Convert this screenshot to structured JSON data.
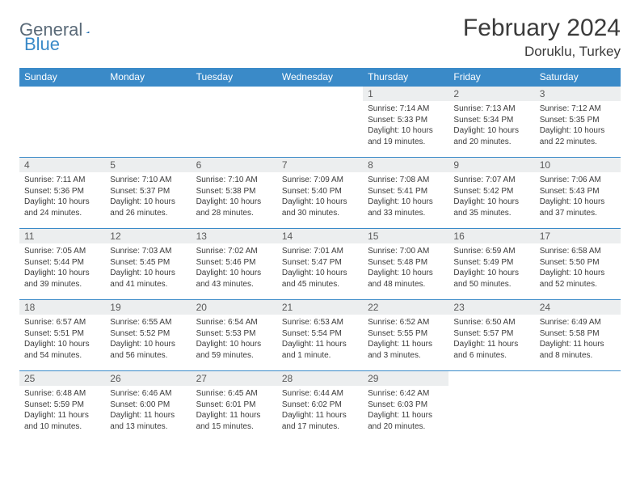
{
  "logo": {
    "part1": "General",
    "part2": "Blue"
  },
  "header": {
    "title": "February 2024",
    "location": "Doruklu, Turkey"
  },
  "colors": {
    "header_bg": "#3a8ac8",
    "header_fg": "#ffffff",
    "daynum_bg": "#eceeef",
    "text": "#3b3b3b",
    "rule": "#3a8ac8"
  },
  "weekdays": [
    "Sunday",
    "Monday",
    "Tuesday",
    "Wednesday",
    "Thursday",
    "Friday",
    "Saturday"
  ],
  "weeks": [
    [
      {
        "blank": true
      },
      {
        "blank": true
      },
      {
        "blank": true
      },
      {
        "blank": true
      },
      {
        "n": "1",
        "l1": "Sunrise: 7:14 AM",
        "l2": "Sunset: 5:33 PM",
        "l3": "Daylight: 10 hours",
        "l4": "and 19 minutes."
      },
      {
        "n": "2",
        "l1": "Sunrise: 7:13 AM",
        "l2": "Sunset: 5:34 PM",
        "l3": "Daylight: 10 hours",
        "l4": "and 20 minutes."
      },
      {
        "n": "3",
        "l1": "Sunrise: 7:12 AM",
        "l2": "Sunset: 5:35 PM",
        "l3": "Daylight: 10 hours",
        "l4": "and 22 minutes."
      }
    ],
    [
      {
        "n": "4",
        "l1": "Sunrise: 7:11 AM",
        "l2": "Sunset: 5:36 PM",
        "l3": "Daylight: 10 hours",
        "l4": "and 24 minutes."
      },
      {
        "n": "5",
        "l1": "Sunrise: 7:10 AM",
        "l2": "Sunset: 5:37 PM",
        "l3": "Daylight: 10 hours",
        "l4": "and 26 minutes."
      },
      {
        "n": "6",
        "l1": "Sunrise: 7:10 AM",
        "l2": "Sunset: 5:38 PM",
        "l3": "Daylight: 10 hours",
        "l4": "and 28 minutes."
      },
      {
        "n": "7",
        "l1": "Sunrise: 7:09 AM",
        "l2": "Sunset: 5:40 PM",
        "l3": "Daylight: 10 hours",
        "l4": "and 30 minutes."
      },
      {
        "n": "8",
        "l1": "Sunrise: 7:08 AM",
        "l2": "Sunset: 5:41 PM",
        "l3": "Daylight: 10 hours",
        "l4": "and 33 minutes."
      },
      {
        "n": "9",
        "l1": "Sunrise: 7:07 AM",
        "l2": "Sunset: 5:42 PM",
        "l3": "Daylight: 10 hours",
        "l4": "and 35 minutes."
      },
      {
        "n": "10",
        "l1": "Sunrise: 7:06 AM",
        "l2": "Sunset: 5:43 PM",
        "l3": "Daylight: 10 hours",
        "l4": "and 37 minutes."
      }
    ],
    [
      {
        "n": "11",
        "l1": "Sunrise: 7:05 AM",
        "l2": "Sunset: 5:44 PM",
        "l3": "Daylight: 10 hours",
        "l4": "and 39 minutes."
      },
      {
        "n": "12",
        "l1": "Sunrise: 7:03 AM",
        "l2": "Sunset: 5:45 PM",
        "l3": "Daylight: 10 hours",
        "l4": "and 41 minutes."
      },
      {
        "n": "13",
        "l1": "Sunrise: 7:02 AM",
        "l2": "Sunset: 5:46 PM",
        "l3": "Daylight: 10 hours",
        "l4": "and 43 minutes."
      },
      {
        "n": "14",
        "l1": "Sunrise: 7:01 AM",
        "l2": "Sunset: 5:47 PM",
        "l3": "Daylight: 10 hours",
        "l4": "and 45 minutes."
      },
      {
        "n": "15",
        "l1": "Sunrise: 7:00 AM",
        "l2": "Sunset: 5:48 PM",
        "l3": "Daylight: 10 hours",
        "l4": "and 48 minutes."
      },
      {
        "n": "16",
        "l1": "Sunrise: 6:59 AM",
        "l2": "Sunset: 5:49 PM",
        "l3": "Daylight: 10 hours",
        "l4": "and 50 minutes."
      },
      {
        "n": "17",
        "l1": "Sunrise: 6:58 AM",
        "l2": "Sunset: 5:50 PM",
        "l3": "Daylight: 10 hours",
        "l4": "and 52 minutes."
      }
    ],
    [
      {
        "n": "18",
        "l1": "Sunrise: 6:57 AM",
        "l2": "Sunset: 5:51 PM",
        "l3": "Daylight: 10 hours",
        "l4": "and 54 minutes."
      },
      {
        "n": "19",
        "l1": "Sunrise: 6:55 AM",
        "l2": "Sunset: 5:52 PM",
        "l3": "Daylight: 10 hours",
        "l4": "and 56 minutes."
      },
      {
        "n": "20",
        "l1": "Sunrise: 6:54 AM",
        "l2": "Sunset: 5:53 PM",
        "l3": "Daylight: 10 hours",
        "l4": "and 59 minutes."
      },
      {
        "n": "21",
        "l1": "Sunrise: 6:53 AM",
        "l2": "Sunset: 5:54 PM",
        "l3": "Daylight: 11 hours",
        "l4": "and 1 minute."
      },
      {
        "n": "22",
        "l1": "Sunrise: 6:52 AM",
        "l2": "Sunset: 5:55 PM",
        "l3": "Daylight: 11 hours",
        "l4": "and 3 minutes."
      },
      {
        "n": "23",
        "l1": "Sunrise: 6:50 AM",
        "l2": "Sunset: 5:57 PM",
        "l3": "Daylight: 11 hours",
        "l4": "and 6 minutes."
      },
      {
        "n": "24",
        "l1": "Sunrise: 6:49 AM",
        "l2": "Sunset: 5:58 PM",
        "l3": "Daylight: 11 hours",
        "l4": "and 8 minutes."
      }
    ],
    [
      {
        "n": "25",
        "l1": "Sunrise: 6:48 AM",
        "l2": "Sunset: 5:59 PM",
        "l3": "Daylight: 11 hours",
        "l4": "and 10 minutes."
      },
      {
        "n": "26",
        "l1": "Sunrise: 6:46 AM",
        "l2": "Sunset: 6:00 PM",
        "l3": "Daylight: 11 hours",
        "l4": "and 13 minutes."
      },
      {
        "n": "27",
        "l1": "Sunrise: 6:45 AM",
        "l2": "Sunset: 6:01 PM",
        "l3": "Daylight: 11 hours",
        "l4": "and 15 minutes."
      },
      {
        "n": "28",
        "l1": "Sunrise: 6:44 AM",
        "l2": "Sunset: 6:02 PM",
        "l3": "Daylight: 11 hours",
        "l4": "and 17 minutes."
      },
      {
        "n": "29",
        "l1": "Sunrise: 6:42 AM",
        "l2": "Sunset: 6:03 PM",
        "l3": "Daylight: 11 hours",
        "l4": "and 20 minutes."
      },
      {
        "blank": true
      },
      {
        "blank": true
      }
    ]
  ]
}
